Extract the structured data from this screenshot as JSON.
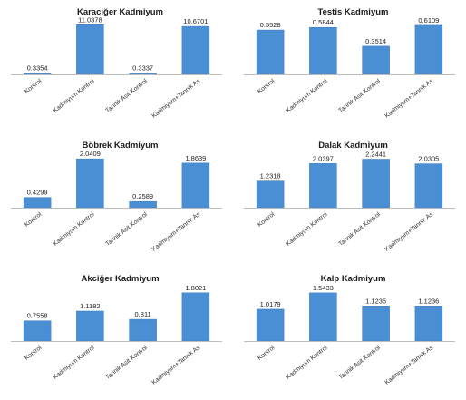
{
  "colors": {
    "bar": "#4a8fd4",
    "bar_edge": "#3b7cc0",
    "axis": "#bdbdbd"
  },
  "chart_data": [
    {
      "type": "bar",
      "title": "Karaciğer Kadmiyum",
      "categories": [
        "Kontrol",
        "Kadmiyum Kontrol",
        "Tannik Asit Kontrol",
        "Kadmiyum+Tannik As"
      ],
      "values": [
        0.3354,
        11.0378,
        0.3337,
        10.6701
      ],
      "labels": [
        "0.3354",
        "11.0378",
        "0.3337",
        "10.6701"
      ],
      "xlabel": "",
      "ylabel": "",
      "ylim": [
        0,
        12.5
      ],
      "grid": false
    },
    {
      "type": "bar",
      "title": "Testis Kadmiyum",
      "categories": [
        "Kontrol",
        "Kadmiyum Kontrol",
        "Tannik Asit Kontrol",
        "Kadmiyum+Tannik As"
      ],
      "values": [
        0.5528,
        0.5844,
        0.3514,
        0.6109
      ],
      "labels": [
        "0.5528",
        "0.5844",
        "0.3514",
        "0.6109"
      ],
      "xlabel": "",
      "ylabel": "",
      "ylim": [
        0,
        0.7
      ],
      "grid": false
    },
    {
      "type": "bar",
      "title": "Böbrek Kadmiyum",
      "categories": [
        "Kontrol",
        "Kadmiyum Kontrol",
        "Tannik Asit Kontrol",
        "Kadmiyum+Tannik As"
      ],
      "values": [
        0.4299,
        2.0409,
        0.2589,
        1.8639
      ],
      "labels": [
        "0.4299",
        "2.0409",
        "0.2589",
        "1.8639"
      ],
      "xlabel": "",
      "ylabel": "",
      "ylim": [
        0,
        2.35
      ],
      "grid": false
    },
    {
      "type": "bar",
      "title": "Dalak Kadmiyum",
      "categories": [
        "Kontrol",
        "Kadmiyum Kontrol",
        "Tannik Asit Kontrol",
        "Kadmiyum+Tannik As"
      ],
      "values": [
        1.2318,
        2.0397,
        2.2441,
        2.0305
      ],
      "labels": [
        "1.2318",
        "2.0397",
        "2.2441",
        "2.0305"
      ],
      "xlabel": "",
      "ylabel": "",
      "ylim": [
        0,
        2.6
      ],
      "grid": false
    },
    {
      "type": "bar",
      "title": "Akciğer Kadmiyum",
      "categories": [
        "Kontrol",
        "Kadmiyum Kontrol",
        "Tannik Asit Kontrol",
        "Kadmiyum+Tannik As"
      ],
      "values": [
        0.7558,
        1.1182,
        0.811,
        1.8021
      ],
      "labels": [
        "0.7558",
        "1.1182",
        "0.811",
        "1.8021"
      ],
      "xlabel": "",
      "ylabel": "",
      "ylim": [
        0,
        2.1
      ],
      "grid": false
    },
    {
      "type": "bar",
      "title": "Kalp Kadmiyum",
      "categories": [
        "Kontrol",
        "Kadmiyum Kontrol",
        "Tannik Asit Kontrol",
        "Kadmiyum+Tannik As"
      ],
      "values": [
        1.0179,
        1.5433,
        1.1236,
        1.1236
      ],
      "labels": [
        "1.0179",
        "1.5433",
        "1.1236",
        "1.1236"
      ],
      "xlabel": "",
      "ylabel": "",
      "ylim": [
        0,
        1.8
      ],
      "grid": false
    }
  ]
}
